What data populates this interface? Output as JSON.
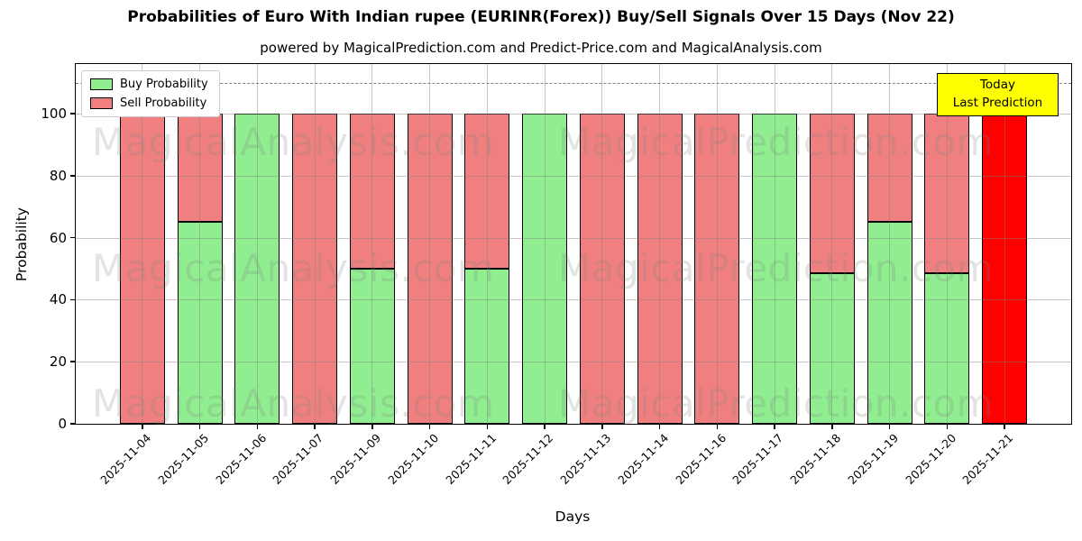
{
  "title": "Probabilities of Euro With Indian rupee (EURINR(Forex)) Buy/Sell Signals Over 15 Days (Nov 22)",
  "subtitle": "powered by MagicalPrediction.com and Predict-Price.com and MagicalAnalysis.com",
  "chart_data": {
    "type": "bar",
    "stacked": true,
    "title": "Probabilities of Euro With Indian rupee (EURINR(Forex)) Buy/Sell Signals Over 15 Days (Nov 22)",
    "xlabel": "Days",
    "ylabel": "Probability",
    "categories": [
      "2025-11-04",
      "2025-11-05",
      "2025-11-06",
      "2025-11-07",
      "2025-11-09",
      "2025-11-10",
      "2025-11-11",
      "2025-11-12",
      "2025-11-13",
      "2025-11-14",
      "2025-11-16",
      "2025-11-17",
      "2025-11-18",
      "2025-11-19",
      "2025-11-20",
      "2025-11-21"
    ],
    "series": [
      {
        "name": "Buy Probability",
        "color": "#90EE90",
        "values": [
          0,
          65,
          100,
          0,
          50,
          0,
          50,
          100,
          0,
          0,
          0,
          100,
          48.5,
          65,
          48.5,
          0
        ]
      },
      {
        "name": "Sell Probability",
        "color": "#F08080",
        "values": [
          100,
          35,
          0,
          100,
          50,
          100,
          50,
          0,
          100,
          100,
          100,
          0,
          51.5,
          35,
          51.5,
          100
        ]
      }
    ],
    "highlight_last_bar_color": "#FF0000",
    "yticks": [
      0,
      20,
      40,
      60,
      80,
      100
    ],
    "ylim": [
      0,
      116
    ],
    "dashed_line_y": 110,
    "grid": true,
    "legend_position": "upper-left"
  },
  "annotation_box": {
    "lines": [
      "Today",
      "Last Prediction"
    ],
    "bg_color": "#FFFF00",
    "border_color": "#000000"
  },
  "watermarks": {
    "left": "MagicalAnalysis.com",
    "right": "MagicalPrediction.com"
  },
  "colors": {
    "buy": "#90EE90",
    "sell": "#F08080",
    "today_bar": "#FF0000",
    "grid": "#b0b0b0"
  }
}
